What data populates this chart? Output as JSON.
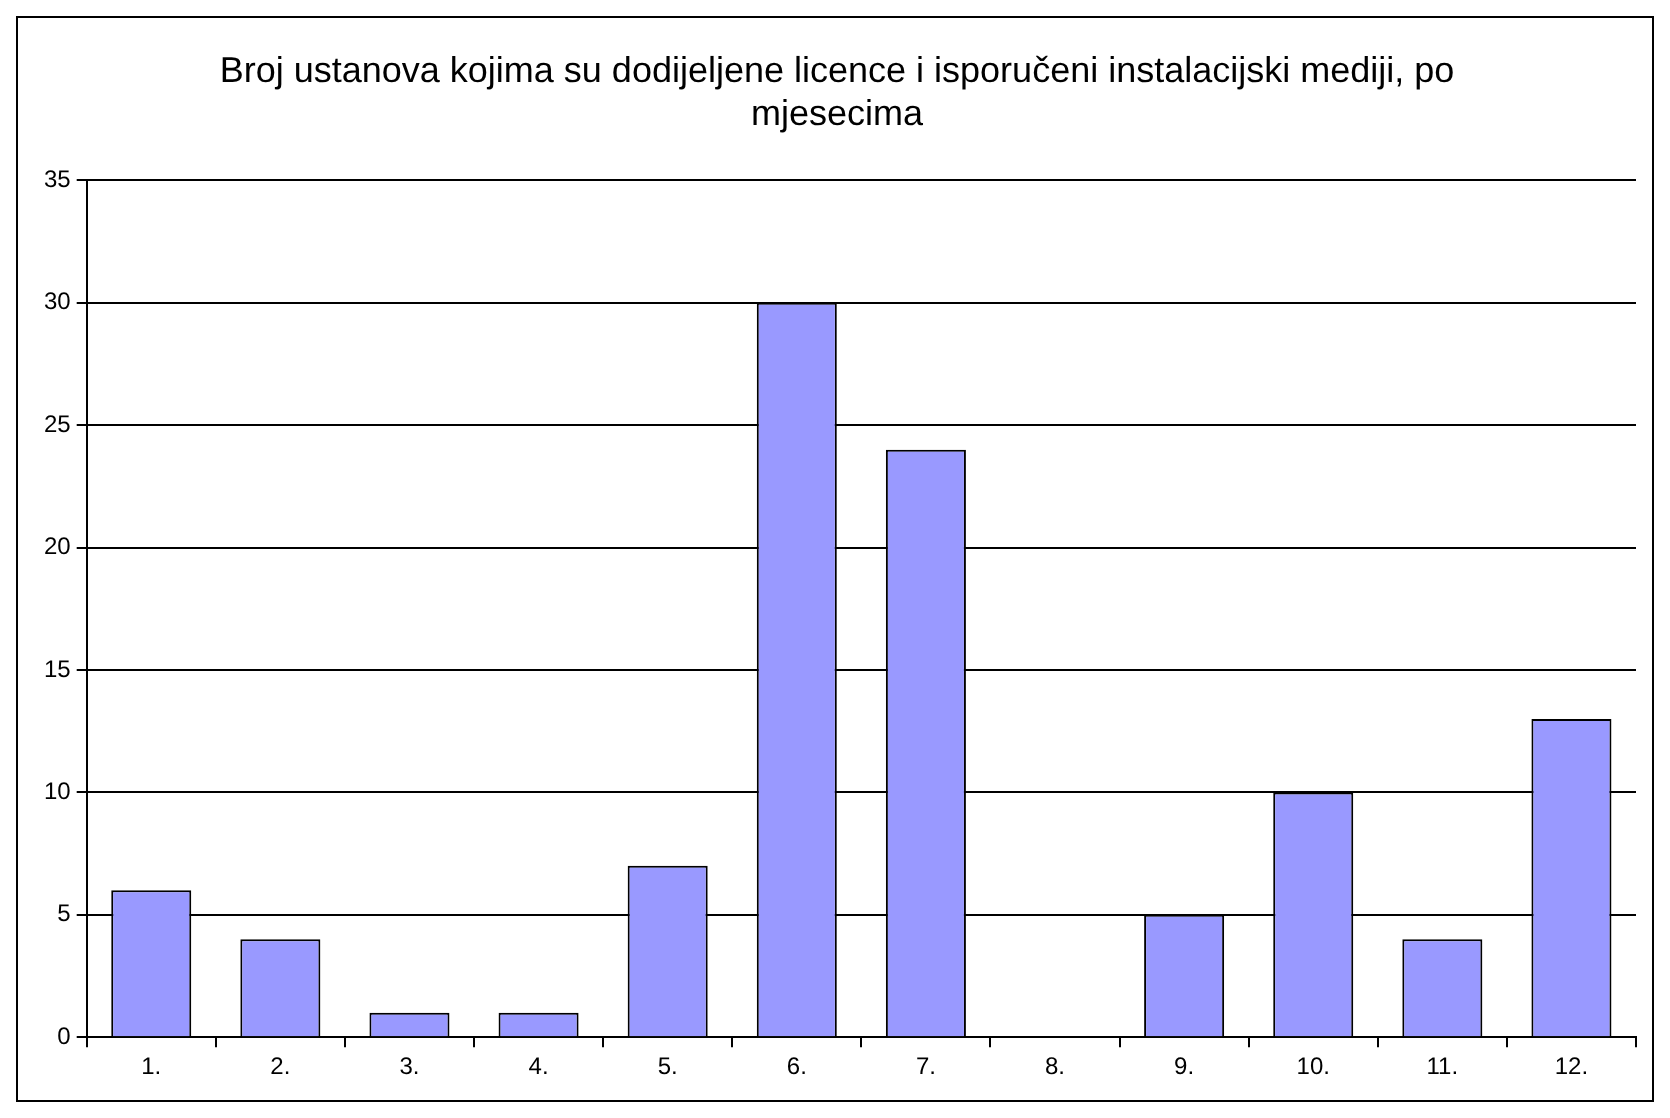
{
  "chart_data": {
    "type": "bar",
    "title": "Broj ustanova kojima su dodijeljene licence i isporučeni instalacijski mediji, po mjesecima",
    "categories": [
      "1.",
      "2.",
      "3.",
      "4.",
      "5.",
      "6.",
      "7.",
      "8.",
      "9.",
      "10.",
      "11.",
      "12."
    ],
    "values": [
      6,
      4,
      1,
      1,
      7,
      30,
      24,
      0,
      5,
      10,
      4,
      13
    ],
    "color": "#9999ff",
    "ylim": [
      0,
      35
    ],
    "yticks": [
      0,
      5,
      10,
      15,
      20,
      25,
      30,
      35
    ],
    "grid": "y",
    "legend": false
  }
}
